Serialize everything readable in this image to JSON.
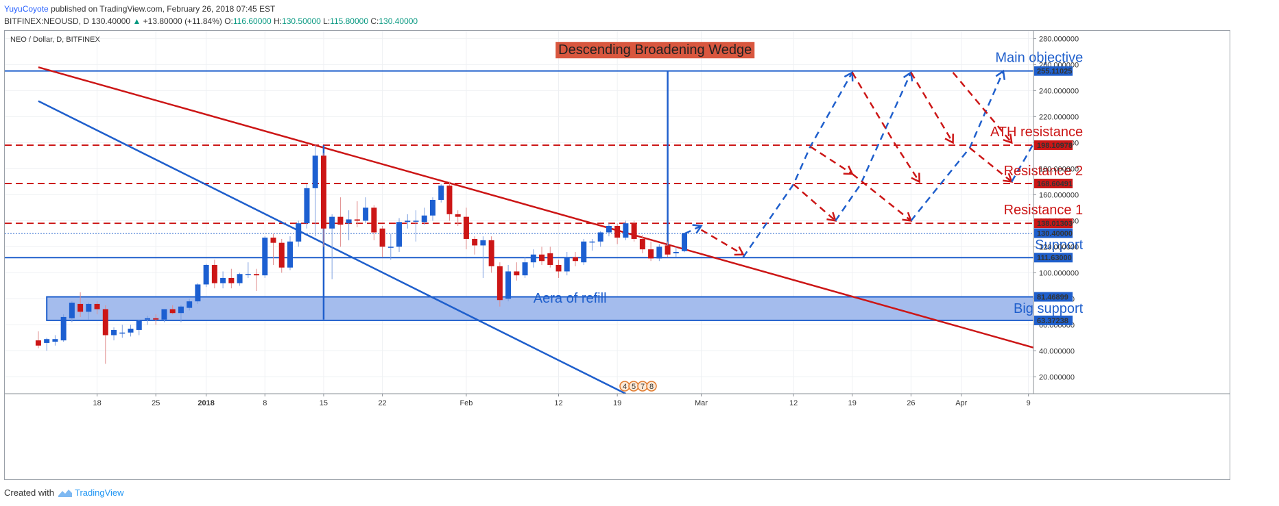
{
  "header": {
    "author": "YuyuCoyote",
    "published": "published on TradingView.com, February 26, 2018 07:45 EST",
    "symbol": "BITFINEX:NEOUSD, D",
    "last": "130.40000",
    "change": "+13.80000 (+11.84%)",
    "o_label": "O:",
    "o": "116.60000",
    "h_label": "H:",
    "h": "130.50000",
    "l_label": "L:",
    "l": "115.80000",
    "c_label": "C:",
    "c": "130.40000"
  },
  "footer": {
    "created_with": "Created with",
    "brand": "TradingView"
  },
  "colors": {
    "up": "#1c5fd1",
    "down": "#cc1616",
    "blue_line": "#1f5fcc",
    "red_line": "#cc1616",
    "zone_fill": "#9fb8ec"
  },
  "chart_data": {
    "type": "candlestick",
    "title": "NEO / Dollar, D, BITFINEX",
    "ylim": [
      7,
      286
    ],
    "y_ticks": [
      "20.000000",
      "40.000000",
      "60.000000",
      "80.000000",
      "100.000000",
      "120.000000",
      "140.000000",
      "160.000000",
      "180.000000",
      "200.000000",
      "220.000000",
      "240.000000",
      "260.000000",
      "280.000000"
    ],
    "x_ticks": [
      {
        "day": 18,
        "label": "18"
      },
      {
        "day": 25,
        "label": "25"
      },
      {
        "day": 31,
        "label": "2018"
      },
      {
        "day": 38,
        "label": "8"
      },
      {
        "day": 45,
        "label": "15"
      },
      {
        "day": 52,
        "label": "22"
      },
      {
        "day": 62,
        "label": "Feb"
      },
      {
        "day": 73,
        "label": "12"
      },
      {
        "day": 80,
        "label": "19"
      },
      {
        "day": 90,
        "label": "Mar"
      },
      {
        "day": 101,
        "label": "12"
      },
      {
        "day": 108,
        "label": "19"
      },
      {
        "day": 115,
        "label": "26"
      },
      {
        "day": 121,
        "label": "Apr"
      },
      {
        "day": 129,
        "label": "9"
      }
    ],
    "price_tags": [
      {
        "value": 255.11025,
        "label": "255.11025",
        "color": "#1f5fcc"
      },
      {
        "value": 198.10978,
        "label": "198.10978",
        "color": "#cc1616"
      },
      {
        "value": 168.60491,
        "label": "168.60491",
        "color": "#cc1616"
      },
      {
        "value": 138.01303,
        "label": "138.01303",
        "color": "#cc1616"
      },
      {
        "value": 130.4,
        "label": "130.40000",
        "color": "#1f5fcc"
      },
      {
        "value": 111.63,
        "label": "111.63000",
        "color": "#1f5fcc"
      },
      {
        "value": 81.46899,
        "label": "81.46899",
        "color": "#1f5fcc"
      },
      {
        "value": 63.37238,
        "label": "63.37238",
        "color": "#1f5fcc"
      }
    ],
    "horizontal_levels": [
      {
        "value": 255.11025,
        "style": "solid",
        "color": "#1f5fcc"
      },
      {
        "value": 198.10978,
        "style": "dashed",
        "color": "#cc1616"
      },
      {
        "value": 168.60491,
        "style": "dashed",
        "color": "#cc1616"
      },
      {
        "value": 138.01303,
        "style": "dashed",
        "color": "#cc1616"
      },
      {
        "value": 130.4,
        "style": "dotted",
        "color": "#1f5fcc"
      },
      {
        "value": 111.63,
        "style": "solid",
        "color": "#1f5fcc"
      }
    ],
    "zone": {
      "from": 63.37238,
      "to": 81.46899,
      "x_start": 12,
      "x_end": 137
    },
    "trendlines": [
      {
        "color": "#cc1616",
        "x1": 11,
        "y1": 258,
        "x2": 137,
        "y2": 29
      },
      {
        "color": "#1f5fcc",
        "x1": 11,
        "y1": 232,
        "x2": 81,
        "y2": 7
      }
    ],
    "vertical_lines": [
      {
        "x": 45,
        "from": 64,
        "to": 198
      },
      {
        "x": 86,
        "from": 118,
        "to": 255
      }
    ],
    "candles": [
      {
        "d": 11,
        "o": 48,
        "h": 55,
        "l": 42,
        "c": 44
      },
      {
        "d": 12,
        "o": 46,
        "h": 50,
        "l": 40,
        "c": 49
      },
      {
        "d": 13,
        "o": 47,
        "h": 52,
        "l": 44,
        "c": 49
      },
      {
        "d": 14,
        "o": 48,
        "h": 68,
        "l": 47,
        "c": 66
      },
      {
        "d": 15,
        "o": 65,
        "h": 78,
        "l": 62,
        "c": 77
      },
      {
        "d": 16,
        "o": 76,
        "h": 85,
        "l": 66,
        "c": 70
      },
      {
        "d": 17,
        "o": 70,
        "h": 77,
        "l": 64,
        "c": 76
      },
      {
        "d": 18,
        "o": 76,
        "h": 78,
        "l": 68,
        "c": 72
      },
      {
        "d": 19,
        "o": 72,
        "h": 75,
        "l": 30,
        "c": 52
      },
      {
        "d": 20,
        "o": 52,
        "h": 58,
        "l": 48,
        "c": 56
      },
      {
        "d": 21,
        "o": 54,
        "h": 60,
        "l": 50,
        "c": 54
      },
      {
        "d": 22,
        "o": 54,
        "h": 60,
        "l": 51,
        "c": 57
      },
      {
        "d": 23,
        "o": 56,
        "h": 64,
        "l": 52,
        "c": 63
      },
      {
        "d": 24,
        "o": 64,
        "h": 67,
        "l": 60,
        "c": 65
      },
      {
        "d": 25,
        "o": 65,
        "h": 68,
        "l": 60,
        "c": 64
      },
      {
        "d": 26,
        "o": 64,
        "h": 72,
        "l": 62,
        "c": 72
      },
      {
        "d": 27,
        "o": 72,
        "h": 75,
        "l": 68,
        "c": 69
      },
      {
        "d": 28,
        "o": 69,
        "h": 75,
        "l": 62,
        "c": 74
      },
      {
        "d": 29,
        "o": 73,
        "h": 80,
        "l": 71,
        "c": 78
      },
      {
        "d": 30,
        "o": 78,
        "h": 92,
        "l": 76,
        "c": 91
      },
      {
        "d": 31,
        "o": 91,
        "h": 107,
        "l": 89,
        "c": 106
      },
      {
        "d": 32,
        "o": 106,
        "h": 110,
        "l": 88,
        "c": 92
      },
      {
        "d": 33,
        "o": 92,
        "h": 101,
        "l": 88,
        "c": 96
      },
      {
        "d": 34,
        "o": 96,
        "h": 103,
        "l": 88,
        "c": 92
      },
      {
        "d": 35,
        "o": 92,
        "h": 100,
        "l": 90,
        "c": 99
      },
      {
        "d": 36,
        "o": 99,
        "h": 108,
        "l": 96,
        "c": 99
      },
      {
        "d": 37,
        "o": 99,
        "h": 103,
        "l": 86,
        "c": 98
      },
      {
        "d": 38,
        "o": 98,
        "h": 128,
        "l": 96,
        "c": 127
      },
      {
        "d": 39,
        "o": 127,
        "h": 130,
        "l": 106,
        "c": 123
      },
      {
        "d": 40,
        "o": 123,
        "h": 126,
        "l": 100,
        "c": 104
      },
      {
        "d": 41,
        "o": 104,
        "h": 128,
        "l": 102,
        "c": 124
      },
      {
        "d": 42,
        "o": 124,
        "h": 140,
        "l": 120,
        "c": 138
      },
      {
        "d": 43,
        "o": 138,
        "h": 168,
        "l": 134,
        "c": 165
      },
      {
        "d": 44,
        "o": 165,
        "h": 198,
        "l": 128,
        "c": 190
      },
      {
        "d": 45,
        "o": 190,
        "h": 192,
        "l": 120,
        "c": 134
      },
      {
        "d": 46,
        "o": 134,
        "h": 145,
        "l": 95,
        "c": 143
      },
      {
        "d": 47,
        "o": 143,
        "h": 158,
        "l": 120,
        "c": 137
      },
      {
        "d": 48,
        "o": 138,
        "h": 148,
        "l": 125,
        "c": 141
      },
      {
        "d": 49,
        "o": 141,
        "h": 155,
        "l": 135,
        "c": 140
      },
      {
        "d": 50,
        "o": 140,
        "h": 158,
        "l": 138,
        "c": 150
      },
      {
        "d": 51,
        "o": 150,
        "h": 152,
        "l": 125,
        "c": 131
      },
      {
        "d": 52,
        "o": 134,
        "h": 136,
        "l": 112,
        "c": 120
      },
      {
        "d": 53,
        "o": 120,
        "h": 130,
        "l": 110,
        "c": 120
      },
      {
        "d": 54,
        "o": 120,
        "h": 142,
        "l": 116,
        "c": 139
      },
      {
        "d": 55,
        "o": 139,
        "h": 145,
        "l": 134,
        "c": 140
      },
      {
        "d": 56,
        "o": 140,
        "h": 148,
        "l": 124,
        "c": 140
      },
      {
        "d": 57,
        "o": 139,
        "h": 150,
        "l": 137,
        "c": 144
      },
      {
        "d": 58,
        "o": 144,
        "h": 158,
        "l": 140,
        "c": 156
      },
      {
        "d": 59,
        "o": 156,
        "h": 168,
        "l": 154,
        "c": 167
      },
      {
        "d": 60,
        "o": 167,
        "h": 170,
        "l": 140,
        "c": 145
      },
      {
        "d": 61,
        "o": 145,
        "h": 148,
        "l": 136,
        "c": 143
      },
      {
        "d": 62,
        "o": 143,
        "h": 150,
        "l": 118,
        "c": 126
      },
      {
        "d": 63,
        "o": 126,
        "h": 128,
        "l": 114,
        "c": 121
      },
      {
        "d": 64,
        "o": 121,
        "h": 128,
        "l": 96,
        "c": 125
      },
      {
        "d": 65,
        "o": 125,
        "h": 128,
        "l": 100,
        "c": 105
      },
      {
        "d": 66,
        "o": 105,
        "h": 108,
        "l": 74,
        "c": 79
      },
      {
        "d": 67,
        "o": 80,
        "h": 106,
        "l": 78,
        "c": 101
      },
      {
        "d": 68,
        "o": 101,
        "h": 108,
        "l": 94,
        "c": 98
      },
      {
        "d": 69,
        "o": 98,
        "h": 112,
        "l": 96,
        "c": 108
      },
      {
        "d": 70,
        "o": 108,
        "h": 118,
        "l": 104,
        "c": 114
      },
      {
        "d": 71,
        "o": 114,
        "h": 120,
        "l": 106,
        "c": 109
      },
      {
        "d": 72,
        "o": 115,
        "h": 120,
        "l": 104,
        "c": 106
      },
      {
        "d": 73,
        "o": 106,
        "h": 110,
        "l": 96,
        "c": 101
      },
      {
        "d": 74,
        "o": 101,
        "h": 116,
        "l": 98,
        "c": 112
      },
      {
        "d": 75,
        "o": 112,
        "h": 116,
        "l": 105,
        "c": 109
      },
      {
        "d": 76,
        "o": 108,
        "h": 126,
        "l": 106,
        "c": 124
      },
      {
        "d": 77,
        "o": 124,
        "h": 126,
        "l": 117,
        "c": 124
      },
      {
        "d": 78,
        "o": 124,
        "h": 132,
        "l": 120,
        "c": 131
      },
      {
        "d": 79,
        "o": 131,
        "h": 138,
        "l": 128,
        "c": 136
      },
      {
        "d": 80,
        "o": 136,
        "h": 138,
        "l": 122,
        "c": 127
      },
      {
        "d": 81,
        "o": 127,
        "h": 140,
        "l": 125,
        "c": 138
      },
      {
        "d": 82,
        "o": 138,
        "h": 140,
        "l": 124,
        "c": 126
      },
      {
        "d": 83,
        "o": 126,
        "h": 129,
        "l": 115,
        "c": 118
      },
      {
        "d": 84,
        "o": 118,
        "h": 124,
        "l": 109,
        "c": 111
      },
      {
        "d": 85,
        "o": 111,
        "h": 122,
        "l": 109,
        "c": 120
      },
      {
        "d": 86,
        "o": 121,
        "h": 124,
        "l": 112,
        "c": 114
      },
      {
        "d": 87,
        "o": 115,
        "h": 120,
        "l": 112,
        "c": 116
      },
      {
        "d": 88,
        "o": 116.6,
        "h": 130.5,
        "l": 115.8,
        "c": 130.4
      }
    ],
    "projections": [
      {
        "color": "#1f5fcc",
        "points": [
          [
            88,
            130
          ],
          [
            90,
            136
          ]
        ]
      },
      {
        "color": "#cc1616",
        "points": [
          [
            90,
            133
          ],
          [
            95,
            114
          ]
        ]
      },
      {
        "color": "#1f5fcc",
        "points": [
          [
            95,
            112
          ],
          [
            101,
            168
          ],
          [
            103,
            197
          ],
          [
            108,
            254
          ]
        ]
      },
      {
        "color": "#cc1616",
        "points": [
          [
            101,
            168
          ],
          [
            106,
            140
          ]
        ]
      },
      {
        "color": "#cc1616",
        "points": [
          [
            103,
            197
          ],
          [
            108,
            176
          ]
        ]
      },
      {
        "color": "#1f5fcc",
        "points": [
          [
            106,
            140
          ],
          [
            109,
            168
          ],
          [
            111,
            197
          ],
          [
            115,
            254
          ]
        ]
      },
      {
        "color": "#cc1616",
        "points": [
          [
            108,
            254
          ],
          [
            113,
            200
          ],
          [
            116,
            170
          ]
        ]
      },
      {
        "color": "#cc1616",
        "points": [
          [
            108,
            176
          ],
          [
            115,
            140
          ]
        ]
      },
      {
        "color": "#1f5fcc",
        "points": [
          [
            115,
            140
          ],
          [
            122,
            196
          ],
          [
            126,
            255
          ]
        ]
      },
      {
        "color": "#cc1616",
        "points": [
          [
            115,
            254
          ],
          [
            120,
            200
          ]
        ]
      },
      {
        "color": "#cc1616",
        "points": [
          [
            120,
            254
          ],
          [
            127,
            200
          ]
        ]
      },
      {
        "color": "#cc1616",
        "points": [
          [
            122,
            196
          ],
          [
            127,
            170
          ]
        ]
      },
      {
        "color": "#1f5fcc",
        "points": [
          [
            127,
            170
          ],
          [
            132,
            226
          ]
        ]
      }
    ],
    "annotations": [
      {
        "text": "Main objective",
        "x": 135.5,
        "y": 262,
        "color": "#1f5fcc",
        "anchor": "end"
      },
      {
        "text": "ATH resistance",
        "x": 135.5,
        "y": 205,
        "color": "#cc1616",
        "anchor": "end"
      },
      {
        "text": "Resistance 2",
        "x": 135.5,
        "y": 175,
        "color": "#cc1616",
        "anchor": "end"
      },
      {
        "text": "Resistance 1",
        "x": 135.5,
        "y": 145,
        "color": "#cc1616",
        "anchor": "end"
      },
      {
        "text": "Support",
        "x": 135.5,
        "y": 118,
        "color": "#1f5fcc",
        "anchor": "end"
      },
      {
        "text": "Aera of refill",
        "x": 70,
        "y": 77,
        "color": "#1f5fcc",
        "anchor": "start"
      },
      {
        "text": "Big support",
        "x": 135.5,
        "y": 69,
        "color": "#1f5fcc",
        "anchor": "end"
      }
    ],
    "banner": {
      "text": "Descending Broadening Wedge",
      "x": 84.5,
      "y": 268
    },
    "event_markers": [
      "4",
      "5",
      "7",
      "8"
    ]
  }
}
